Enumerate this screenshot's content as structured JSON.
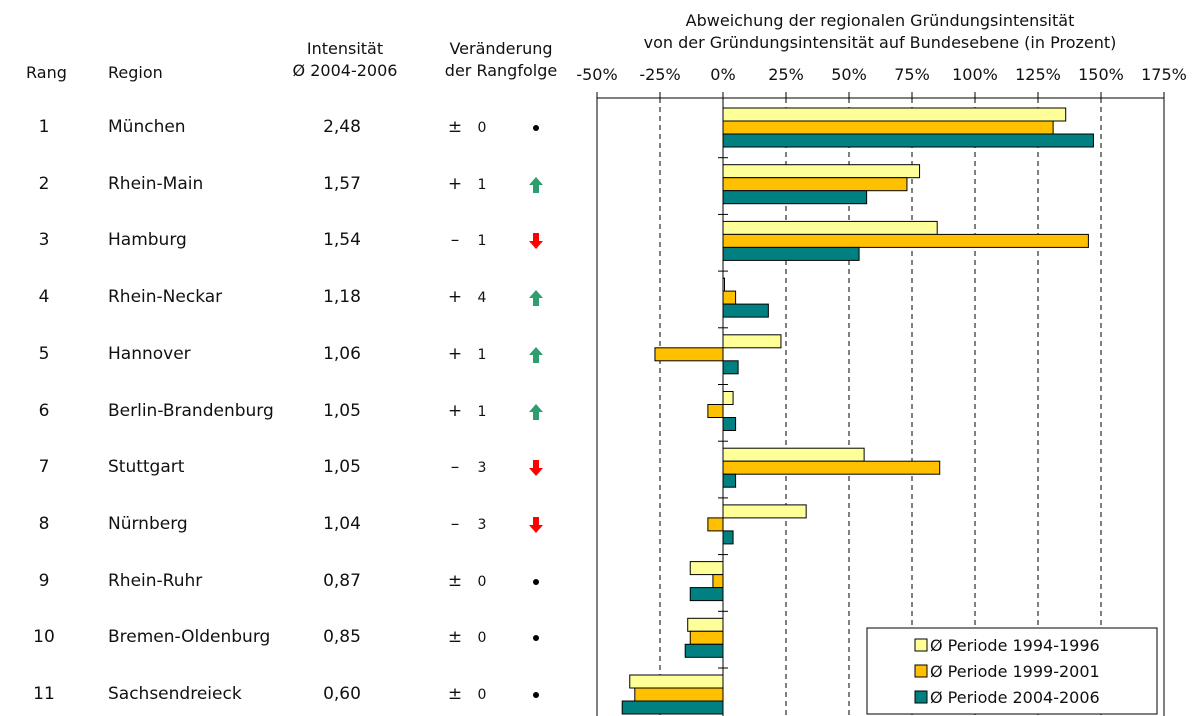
{
  "header": {
    "rank": "Rang",
    "region": "Region",
    "intensity_line1": "Intensität",
    "intensity_line2": "Ø 2004-2006",
    "change_line1": "Veränderung",
    "change_line2": "der Rangfolge",
    "chart_title_line1": "Abweichung der regionalen Gründungsintensität",
    "chart_title_line2": "von der Gründungsintensität auf Bundesebene (in Prozent)"
  },
  "rows": [
    {
      "rank": "1",
      "region": "München",
      "intensity": "2,48",
      "sign": "±",
      "change": "0",
      "indicator": "dot"
    },
    {
      "rank": "2",
      "region": "Rhein-Main",
      "intensity": "1,57",
      "sign": "+",
      "change": "1",
      "indicator": "up"
    },
    {
      "rank": "3",
      "region": "Hamburg",
      "intensity": "1,54",
      "sign": "–",
      "change": "1",
      "indicator": "down"
    },
    {
      "rank": "4",
      "region": "Rhein-Neckar",
      "intensity": "1,18",
      "sign": "+",
      "change": "4",
      "indicator": "up"
    },
    {
      "rank": "5",
      "region": "Hannover",
      "intensity": "1,06",
      "sign": "+",
      "change": "1",
      "indicator": "up"
    },
    {
      "rank": "6",
      "region": "Berlin-Brandenburg",
      "intensity": "1,05",
      "sign": "+",
      "change": "1",
      "indicator": "up"
    },
    {
      "rank": "7",
      "region": "Stuttgart",
      "intensity": "1,05",
      "sign": "–",
      "change": "3",
      "indicator": "down"
    },
    {
      "rank": "8",
      "region": "Nürnberg",
      "intensity": "1,04",
      "sign": "–",
      "change": "3",
      "indicator": "down"
    },
    {
      "rank": "9",
      "region": "Rhein-Ruhr",
      "intensity": "0,87",
      "sign": "±",
      "change": "0",
      "indicator": "dot"
    },
    {
      "rank": "10",
      "region": "Bremen-Oldenburg",
      "intensity": "0,85",
      "sign": "±",
      "change": "0",
      "indicator": "dot"
    },
    {
      "rank": "11",
      "region": "Sachsendreieck",
      "intensity": "0,60",
      "sign": "±",
      "change": "0",
      "indicator": "dot"
    }
  ],
  "colors": {
    "series_1994": "#ffff99",
    "series_1999": "#ffc000",
    "series_2004": "#008080",
    "arrow_up": "#2e9e6e",
    "arrow_down": "#ff0000"
  },
  "chart_data": {
    "type": "bar",
    "orientation": "horizontal",
    "title": "Abweichung der regionalen Gründungsintensität von der Gründungsintensität auf Bundesebene (in Prozent)",
    "categories": [
      "München",
      "Rhein-Main",
      "Hamburg",
      "Rhein-Neckar",
      "Hannover",
      "Berlin-Brandenburg",
      "Stuttgart",
      "Nürnberg",
      "Rhein-Ruhr",
      "Bremen-Oldenburg",
      "Sachsendreieck"
    ],
    "series": [
      {
        "name": "Ø Periode 1994-1996",
        "values": [
          136,
          78,
          85,
          0,
          23,
          4,
          56,
          33,
          -13,
          -14,
          -37
        ]
      },
      {
        "name": "Ø Periode 1999-2001",
        "values": [
          131,
          73,
          145,
          5,
          -27,
          -6,
          86,
          -6,
          -4,
          -13,
          -35
        ]
      },
      {
        "name": "Ø Periode 2004-2006",
        "values": [
          147,
          57,
          54,
          18,
          6,
          5,
          5,
          4,
          -13,
          -15,
          -40
        ]
      }
    ],
    "xticks": [
      "-50%",
      "-25%",
      "0%",
      "25%",
      "50%",
      "75%",
      "100%",
      "125%",
      "150%",
      "175%"
    ],
    "xlim": [
      -50,
      175
    ],
    "grid": "vertical dashed",
    "legend_position": "bottom-right"
  }
}
